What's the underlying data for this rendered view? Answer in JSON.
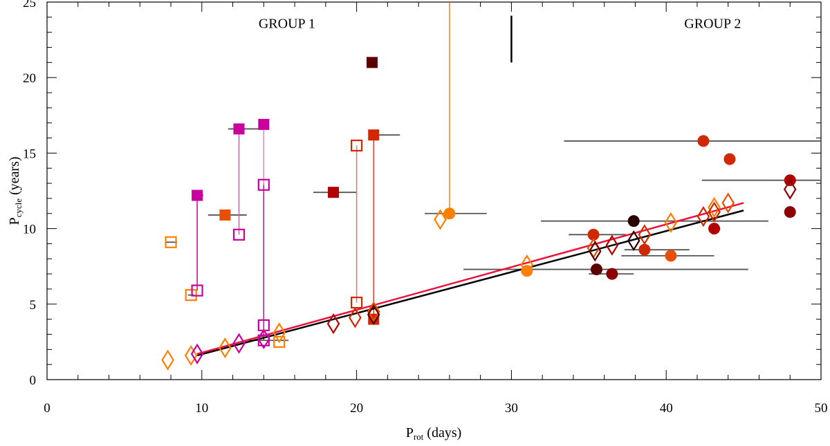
{
  "chart_data": {
    "type": "scatter",
    "xlabel": {
      "main": "P",
      "sub": "rot",
      "rest": " (days)"
    },
    "ylabel": {
      "main": "P",
      "sub": "cycle",
      "rest": " (years)"
    },
    "xlim": [
      0,
      50
    ],
    "ylim": [
      0,
      25
    ],
    "xticks": [
      0,
      10,
      20,
      30,
      40,
      50
    ],
    "yticks": [
      0,
      5,
      10,
      15,
      20,
      25
    ],
    "annotations": [
      {
        "text": "GROUP 1",
        "x": 15.5,
        "y": 23.6
      },
      {
        "text": "GROUP 2",
        "x": 43,
        "y": 23.6
      }
    ],
    "separator": {
      "x": 30,
      "y": [
        21,
        24.1
      ]
    },
    "colors": {
      "magenta": "#c8009e",
      "orange": "#ff7f00",
      "orangered": "#e65000",
      "red": "#d02800",
      "darkred": "#b00000",
      "maroon": "#8b0000",
      "darkest": "#5a0000",
      "black": "#2a0000",
      "fit_black": "#000000",
      "fit_red": "#f0103c"
    },
    "fits": [
      {
        "name": "fit-black",
        "color": "#000000",
        "x": [
          9.7,
          45
        ],
        "y": [
          1.6,
          11.2
        ]
      },
      {
        "name": "fit-red",
        "color": "#f0103c",
        "x": [
          9.7,
          45
        ],
        "y": [
          1.7,
          11.7
        ]
      }
    ],
    "connectors": [
      {
        "x": 9.7,
        "y": [
          5.9,
          12.2
        ],
        "color": "#c8009e"
      },
      {
        "x": 12.4,
        "y": [
          9.6,
          16.6
        ],
        "color": "#d850b8"
      },
      {
        "x": 14.0,
        "y": [
          12.9,
          16.9
        ],
        "color": "#e080c8"
      },
      {
        "x": 14.0,
        "y": [
          2.6,
          12.9
        ],
        "color": "#c8009e"
      },
      {
        "x": 20.0,
        "y": [
          5.1,
          15.5
        ],
        "color": "#e07060"
      },
      {
        "x": 21.1,
        "y": [
          4.0,
          16.2
        ],
        "color": "#e04030"
      },
      {
        "x": 26.0,
        "y": [
          11.0,
          25
        ],
        "color": "#ff7f00"
      }
    ],
    "points": [
      {
        "shape": "square",
        "filled": false,
        "color": "#ff7f00",
        "x": 8.0,
        "y": 9.1,
        "xerr": [
          7.7,
          8.4
        ]
      },
      {
        "shape": "square",
        "filled": false,
        "color": "#ff7f00",
        "x": 9.3,
        "y": 5.6,
        "xerr": [
          9.1,
          9.5
        ]
      },
      {
        "shape": "square",
        "filled": false,
        "color": "#c8009e",
        "x": 9.7,
        "y": 5.9
      },
      {
        "shape": "square",
        "filled": true,
        "color": "#c8009e",
        "x": 9.7,
        "y": 12.2,
        "xerr": [
          9.4,
          10.1
        ]
      },
      {
        "shape": "square",
        "filled": true,
        "color": "#e65000",
        "x": 11.5,
        "y": 10.9,
        "xerr": [
          10.4,
          12.9
        ]
      },
      {
        "shape": "square",
        "filled": true,
        "color": "#c8009e",
        "x": 12.4,
        "y": 16.6,
        "xerr": [
          11.7,
          14.0
        ]
      },
      {
        "shape": "square",
        "filled": false,
        "color": "#c8009e",
        "x": 12.4,
        "y": 9.6
      },
      {
        "shape": "square",
        "filled": true,
        "color": "#c8009e",
        "x": 14.0,
        "y": 16.9
      },
      {
        "shape": "square",
        "filled": false,
        "color": "#c8009e",
        "x": 14.0,
        "y": 12.9
      },
      {
        "shape": "square",
        "filled": false,
        "color": "#c8009e",
        "x": 14.0,
        "y": 3.6
      },
      {
        "shape": "square",
        "filled": false,
        "color": "#c8009e",
        "x": 14.0,
        "y": 2.6,
        "xerr": [
          13.0,
          15.6
        ]
      },
      {
        "shape": "square",
        "filled": false,
        "color": "#ff7f00",
        "x": 15.0,
        "y": 2.5
      },
      {
        "shape": "square",
        "filled": true,
        "color": "#b00000",
        "x": 18.5,
        "y": 12.4,
        "xerr": [
          17.2,
          20.0
        ]
      },
      {
        "shape": "square",
        "filled": false,
        "color": "#d02800",
        "x": 20.0,
        "y": 15.5
      },
      {
        "shape": "square",
        "filled": false,
        "color": "#d02800",
        "x": 20.0,
        "y": 5.1
      },
      {
        "shape": "square",
        "filled": true,
        "color": "#d02800",
        "x": 21.1,
        "y": 16.2,
        "xerr": [
          20.8,
          22.8
        ]
      },
      {
        "shape": "square",
        "filled": true,
        "color": "#d02800",
        "x": 21.1,
        "y": 4.0
      },
      {
        "shape": "square",
        "filled": true,
        "color": "#5a0000",
        "x": 21.0,
        "y": 21.0
      },
      {
        "shape": "diamond",
        "filled": false,
        "color": "#ff7f00",
        "x": 7.8,
        "y": 1.3
      },
      {
        "shape": "diamond",
        "filled": false,
        "color": "#ff7f00",
        "x": 9.3,
        "y": 1.6
      },
      {
        "shape": "diamond",
        "filled": false,
        "color": "#c8009e",
        "x": 9.7,
        "y": 1.7
      },
      {
        "shape": "diamond",
        "filled": false,
        "color": "#ff7f00",
        "x": 11.5,
        "y": 2.1
      },
      {
        "shape": "diamond",
        "filled": false,
        "color": "#c8009e",
        "x": 12.4,
        "y": 2.4
      },
      {
        "shape": "diamond",
        "filled": false,
        "color": "#c8009e",
        "x": 14.0,
        "y": 2.7
      },
      {
        "shape": "diamond",
        "filled": false,
        "color": "#ff7f00",
        "x": 15.0,
        "y": 3.1
      },
      {
        "shape": "diamond",
        "filled": false,
        "color": "#b00000",
        "x": 18.5,
        "y": 3.7
      },
      {
        "shape": "diamond",
        "filled": false,
        "color": "#d02800",
        "x": 19.9,
        "y": 4.1
      },
      {
        "shape": "diamond",
        "filled": false,
        "color": "#e65000",
        "x": 21.1,
        "y": 4.5
      },
      {
        "shape": "diamond",
        "filled": false,
        "color": "#5a0000",
        "x": 21.1,
        "y": 4.3
      },
      {
        "shape": "diamond",
        "filled": false,
        "color": "#ff7f00",
        "x": 25.4,
        "y": 10.6
      },
      {
        "shape": "circle",
        "filled": true,
        "color": "#ff7f00",
        "x": 26.0,
        "y": 11.0,
        "xerr": [
          24.4,
          28.4
        ]
      },
      {
        "shape": "diamond",
        "filled": false,
        "color": "#ff7f00",
        "x": 31.0,
        "y": 7.6
      },
      {
        "shape": "circle",
        "filled": true,
        "color": "#ff7f00",
        "x": 31.0,
        "y": 7.2
      },
      {
        "shape": "circle",
        "filled": true,
        "color": "#d02800",
        "x": 42.4,
        "y": 15.8,
        "xerr": [
          33.4,
          50
        ]
      },
      {
        "shape": "circle",
        "filled": true,
        "color": "#d02800",
        "x": 44.1,
        "y": 14.6
      },
      {
        "shape": "circle",
        "filled": true,
        "color": "#b00000",
        "x": 48.0,
        "y": 13.2,
        "xerr": [
          42.3,
          50
        ]
      },
      {
        "shape": "diamond",
        "filled": false,
        "color": "#8b0000",
        "x": 48.0,
        "y": 12.6
      },
      {
        "shape": "circle",
        "filled": true,
        "color": "#8b0000",
        "x": 48.0,
        "y": 11.1
      },
      {
        "shape": "circle",
        "filled": true,
        "color": "#2a0000",
        "x": 37.9,
        "y": 10.5,
        "xerr": [
          31.9,
          46.6
        ]
      },
      {
        "shape": "circle",
        "filled": true,
        "color": "#d02800",
        "x": 35.3,
        "y": 9.6,
        "xerr": [
          33.7,
          37.4
        ]
      },
      {
        "shape": "diamond",
        "filled": false,
        "color": "#e65000",
        "x": 35.3,
        "y": 8.7
      },
      {
        "shape": "diamond",
        "filled": false,
        "color": "#5a0000",
        "x": 35.4,
        "y": 8.5
      },
      {
        "shape": "diamond",
        "filled": false,
        "color": "#b00000",
        "x": 36.5,
        "y": 8.9
      },
      {
        "shape": "diamond",
        "filled": false,
        "color": "#2a0000",
        "x": 37.9,
        "y": 9.2
      },
      {
        "shape": "diamond",
        "filled": false,
        "color": "#d02800",
        "x": 38.6,
        "y": 9.6
      },
      {
        "shape": "circle",
        "filled": true,
        "color": "#d02800",
        "x": 38.6,
        "y": 8.6,
        "xerr": [
          37.3,
          41.5
        ]
      },
      {
        "shape": "diamond",
        "filled": false,
        "color": "#ff7f00",
        "x": 40.3,
        "y": 10.4
      },
      {
        "shape": "circle",
        "filled": true,
        "color": "#e65000",
        "x": 40.3,
        "y": 8.2,
        "xerr": [
          37.1,
          43.1
        ]
      },
      {
        "shape": "diamond",
        "filled": false,
        "color": "#d02800",
        "x": 42.4,
        "y": 10.8
      },
      {
        "shape": "diamond",
        "filled": false,
        "color": "#ff7f00",
        "x": 43.1,
        "y": 11.4
      },
      {
        "shape": "diamond",
        "filled": false,
        "color": "#d02800",
        "x": 43.1,
        "y": 11.1
      },
      {
        "shape": "circle",
        "filled": true,
        "color": "#b00000",
        "x": 43.1,
        "y": 10.0
      },
      {
        "shape": "diamond",
        "filled": false,
        "color": "#e65000",
        "x": 44.0,
        "y": 11.7
      },
      {
        "shape": "circle",
        "filled": true,
        "color": "#5a0000",
        "x": 35.5,
        "y": 7.3,
        "xerr": [
          26.9,
          45.3
        ]
      },
      {
        "shape": "circle",
        "filled": true,
        "color": "#8b0000",
        "x": 36.5,
        "y": 7.0,
        "xerr": [
          35.0,
          37.9
        ]
      }
    ]
  }
}
